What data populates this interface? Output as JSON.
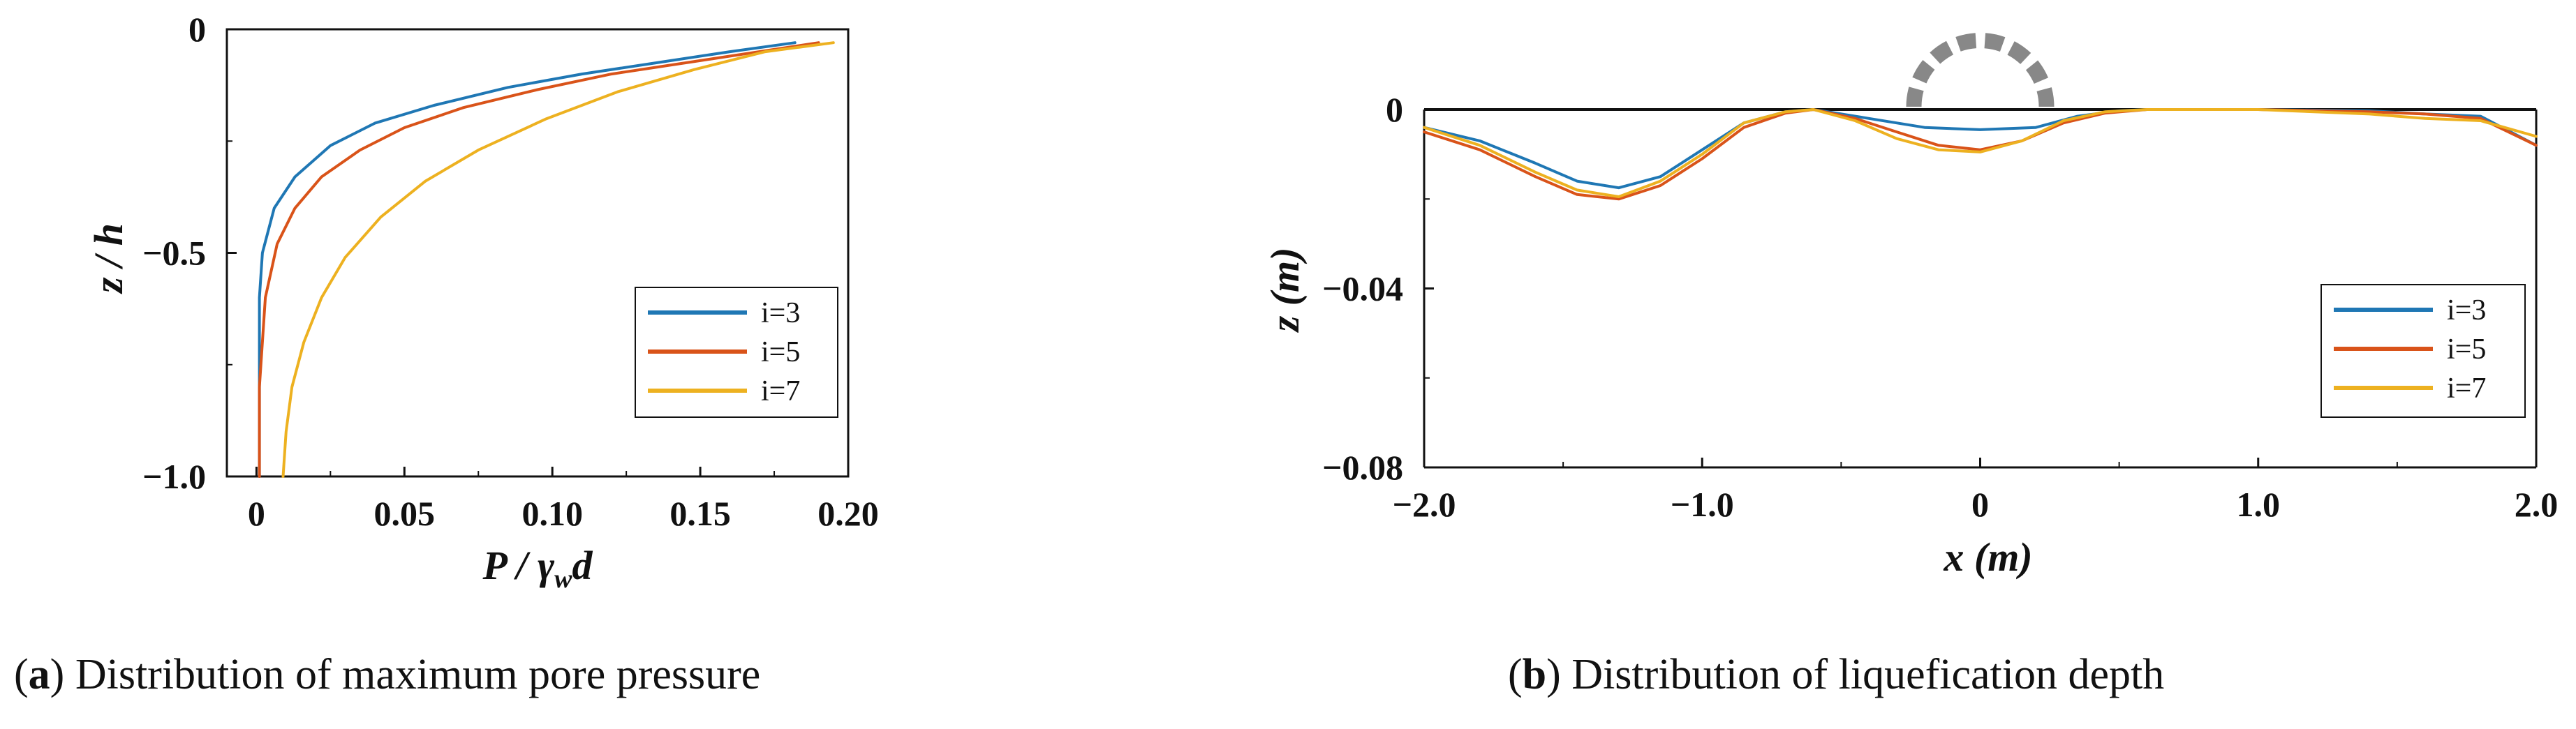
{
  "colors": {
    "i3": "#1f77b4",
    "i5": "#d95319",
    "i7": "#edb120",
    "structure": "#888888"
  },
  "captions": {
    "a": {
      "letter": "a",
      "text": " Distribution of maximum pore pressure"
    },
    "b": {
      "letter": "b",
      "text": " Distribution of liquefication depth"
    }
  },
  "chart_data": [
    {
      "type": "line",
      "xlabel_main": "P / γ",
      "xlabel_sub": "w",
      "xlabel_tail": "d",
      "ylabel": "z / h",
      "xlim": [
        -0.01,
        0.2
      ],
      "ylim": [
        -1.0,
        0.0
      ],
      "x_ticks": [
        0,
        0.05,
        0.1,
        0.15,
        0.2
      ],
      "x_tick_labels": [
        "0",
        "0.05",
        "0.10",
        "0.15",
        "0.20"
      ],
      "y_ticks": [
        0,
        -0.5,
        -1.0
      ],
      "y_tick_labels": [
        "0",
        "−0.5",
        "−1.0"
      ],
      "legend_position": "bottom-right",
      "series": [
        {
          "name": "i=3",
          "color_key": "i3",
          "x": [
            0.001,
            0.001,
            0.002,
            0.006,
            0.013,
            0.025,
            0.04,
            0.06,
            0.085,
            0.11,
            0.135,
            0.16,
            0.182
          ],
          "y": [
            -1.0,
            -0.6,
            -0.5,
            -0.4,
            -0.33,
            -0.26,
            -0.21,
            -0.17,
            -0.13,
            -0.1,
            -0.075,
            -0.05,
            -0.03
          ]
        },
        {
          "name": "i=5",
          "color_key": "i5",
          "x": [
            0.001,
            0.001,
            0.003,
            0.007,
            0.013,
            0.022,
            0.035,
            0.05,
            0.07,
            0.095,
            0.12,
            0.15,
            0.175,
            0.19
          ],
          "y": [
            -1.0,
            -0.8,
            -0.6,
            -0.48,
            -0.4,
            -0.33,
            -0.27,
            -0.22,
            -0.175,
            -0.135,
            -0.1,
            -0.07,
            -0.045,
            -0.03
          ]
        },
        {
          "name": "i=7",
          "color_key": "i7",
          "x": [
            0.009,
            0.01,
            0.012,
            0.016,
            0.022,
            0.03,
            0.042,
            0.057,
            0.075,
            0.098,
            0.122,
            0.148,
            0.172,
            0.195
          ],
          "y": [
            -1.0,
            -0.9,
            -0.8,
            -0.7,
            -0.6,
            -0.51,
            -0.42,
            -0.34,
            -0.27,
            -0.2,
            -0.14,
            -0.09,
            -0.05,
            -0.03
          ]
        }
      ]
    },
    {
      "type": "line",
      "xlabel": "x (m)",
      "ylabel": "z (m)",
      "xlim": [
        -2.0,
        2.0
      ],
      "ylim": [
        -0.08,
        0.0
      ],
      "x_ticks": [
        -2,
        -1,
        0,
        1,
        2
      ],
      "x_tick_labels": [
        "−2.0",
        "−1.0",
        "0",
        "1.0",
        "2.0"
      ],
      "y_ticks": [
        0,
        -0.04,
        -0.08
      ],
      "y_tick_labels": [
        "0",
        "−0.04",
        "−0.08"
      ],
      "legend_position": "bottom-right",
      "series": [
        {
          "name": "i=3",
          "color_key": "i3",
          "x": [
            -2.0,
            -1.8,
            -1.6,
            -1.45,
            -1.3,
            -1.15,
            -1.0,
            -0.85,
            -0.7,
            -0.6,
            -0.4,
            -0.2,
            0.0,
            0.2,
            0.35,
            0.5,
            0.6,
            1.0,
            1.4,
            1.6,
            1.8,
            2.0
          ],
          "y": [
            -0.004,
            -0.007,
            -0.012,
            -0.016,
            -0.0175,
            -0.015,
            -0.009,
            -0.003,
            -0.0005,
            0.0,
            -0.002,
            -0.004,
            -0.0045,
            -0.004,
            -0.0015,
            -0.0003,
            0.0,
            0.0,
            -0.0003,
            -0.001,
            -0.0015,
            -0.008
          ]
        },
        {
          "name": "i=5",
          "color_key": "i5",
          "x": [
            -2.0,
            -1.8,
            -1.6,
            -1.45,
            -1.3,
            -1.15,
            -1.0,
            -0.85,
            -0.7,
            -0.6,
            -0.45,
            -0.3,
            -0.15,
            0.0,
            0.15,
            0.3,
            0.45,
            0.6,
            1.0,
            1.4,
            1.6,
            1.8,
            2.0
          ],
          "y": [
            -0.005,
            -0.009,
            -0.015,
            -0.019,
            -0.02,
            -0.017,
            -0.011,
            -0.004,
            -0.0008,
            0.0,
            -0.002,
            -0.005,
            -0.008,
            -0.009,
            -0.007,
            -0.003,
            -0.0008,
            0.0,
            0.0,
            -0.0005,
            -0.001,
            -0.002,
            -0.008
          ]
        },
        {
          "name": "i=7",
          "color_key": "i7",
          "x": [
            -2.0,
            -1.8,
            -1.6,
            -1.45,
            -1.3,
            -1.15,
            -1.0,
            -0.85,
            -0.7,
            -0.6,
            -0.45,
            -0.3,
            -0.15,
            0.0,
            0.15,
            0.3,
            0.45,
            0.6,
            1.0,
            1.4,
            1.6,
            1.8,
            2.0
          ],
          "y": [
            -0.004,
            -0.008,
            -0.014,
            -0.018,
            -0.0195,
            -0.016,
            -0.01,
            -0.003,
            -0.0005,
            0.0,
            -0.0025,
            -0.0065,
            -0.009,
            -0.0095,
            -0.007,
            -0.0025,
            -0.0005,
            0.0,
            0.0,
            -0.001,
            -0.002,
            -0.0025,
            -0.006
          ]
        }
      ]
    }
  ]
}
